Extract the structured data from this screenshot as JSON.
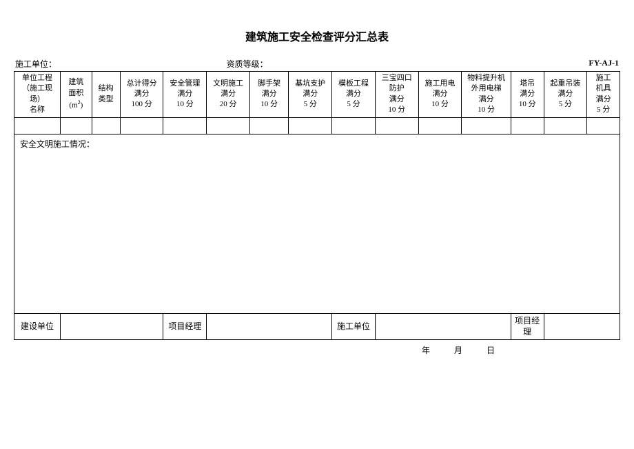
{
  "title": "建筑施工安全检查评分汇总表",
  "header": {
    "left_label": "施工单位：",
    "mid_label": "资质等级：",
    "code": "FY-AJ-1"
  },
  "columns": [
    {
      "l1": "单位工程",
      "l2": "（施工现场）",
      "l3": "名称",
      "width": 62
    },
    {
      "l1": "建筑",
      "l2": "面积",
      "l3": "(m²)",
      "width": 42
    },
    {
      "l1": "结构",
      "l2": "类型",
      "l3": "",
      "width": 38
    },
    {
      "l1": "总计得分",
      "l2": "满分",
      "l3": "100 分",
      "width": 58
    },
    {
      "l1": "安全管理",
      "l2": "满分",
      "l3": "10 分",
      "width": 58
    },
    {
      "l1": "文明施工",
      "l2": "满分",
      "l3": "20 分",
      "width": 58
    },
    {
      "l1": "脚手架",
      "l2": "满分",
      "l3": "10 分",
      "width": 52
    },
    {
      "l1": "基坑支护",
      "l2": "满分",
      "l3": "5 分",
      "width": 58
    },
    {
      "l1": "模板工程",
      "l2": "满分",
      "l3": "5 分",
      "width": 58
    },
    {
      "l1": "三宝四口",
      "l2": "防护",
      "l3": "满分",
      "l4": "10 分",
      "width": 58
    },
    {
      "l1": "施工用电",
      "l2": "满分",
      "l3": "10 分",
      "width": 58
    },
    {
      "l1": "物料提升机",
      "l2": "外用电梯",
      "l3": "满分",
      "l4": "10 分",
      "width": 66
    },
    {
      "l1": "塔吊",
      "l2": "满分",
      "l3": "10 分",
      "width": 44
    },
    {
      "l1": "起重吊装",
      "l2": "满分",
      "l3": "5 分",
      "width": 58
    },
    {
      "l1": "施工",
      "l2": "机具",
      "l3": "满分",
      "l4": "5 分",
      "width": 44
    }
  ],
  "notes_label": "安全文明施工情况：",
  "footer": {
    "c1": "建设单位",
    "c2": "项目经理",
    "c3": "施工单位",
    "c4": "项目经理"
  },
  "date": {
    "y": "年",
    "m": "月",
    "d": "日"
  },
  "styles": {
    "font_size_title": 16,
    "font_size_body": 11,
    "border_color": "#000000",
    "bg_color": "#ffffff",
    "text_color": "#000000"
  }
}
